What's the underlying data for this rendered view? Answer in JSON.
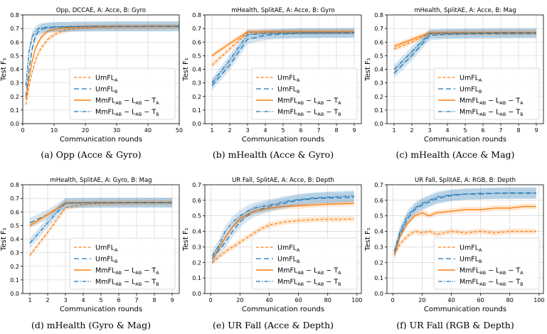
{
  "colors": {
    "umfl_a": "#ff7f0e",
    "umfl_b": "#1f77b4",
    "axis": "#000000",
    "grid": "#cccccc"
  },
  "legend_items": [
    {
      "base": "UmFL",
      "sub": "A",
      "style": "dashed",
      "color": "#ff7f0e"
    },
    {
      "base": "UmFL",
      "sub": "B",
      "style": "dashed-loose",
      "color": "#1f77b4"
    },
    {
      "base": "MmFL",
      "sub": "AB",
      "mid1": " − L",
      "sub2": "AB",
      "mid2": " − T",
      "sub3": "A",
      "style": "solid",
      "color": "#ff7f0e"
    },
    {
      "base": "MmFL",
      "sub": "AB",
      "mid1": " − L",
      "sub2": "AB",
      "mid2": " − T",
      "sub3": "B",
      "style": "dashdot",
      "color": "#1f77b4"
    }
  ],
  "captions": [
    "(a) Opp (Acce & Gyro)",
    "(b) mHealth (Acce & Gyro)",
    "(c) mHealth (Acce & Mag)",
    "(d) mHealth (Gyro & Mag)",
    "(e) UR Fall (Acce & Depth)",
    "(f) UR Fall (RGB & Depth)"
  ],
  "chart_data": [
    {
      "type": "line",
      "title": "Opp, DCCAE, A: Acce, B: Gyro",
      "xlabel": "Communication rounds",
      "ylabel": "Test F₁",
      "xlim": [
        0,
        50
      ],
      "ylim": [
        0.0,
        0.8
      ],
      "xticks": [
        0,
        10,
        20,
        30,
        40,
        50
      ],
      "yticks": [
        0.0,
        0.1,
        0.2,
        0.3,
        0.4,
        0.5,
        0.6,
        0.7,
        0.8
      ],
      "legend_position": "lower right",
      "series": [
        {
          "name": "UmFL_A",
          "x": [
            1,
            2,
            3,
            4,
            5,
            6,
            7,
            8,
            10,
            12,
            15,
            20,
            25,
            30,
            35,
            40,
            45,
            50
          ],
          "y": [
            0.14,
            0.27,
            0.38,
            0.46,
            0.52,
            0.56,
            0.59,
            0.62,
            0.655,
            0.675,
            0.695,
            0.705,
            0.71,
            0.712,
            0.713,
            0.714,
            0.715,
            0.715
          ]
        },
        {
          "name": "UmFL_B",
          "x": [
            1,
            2,
            3,
            4,
            5,
            6,
            8,
            10,
            15,
            20,
            30,
            40,
            50
          ],
          "y": [
            0.2,
            0.4,
            0.55,
            0.64,
            0.68,
            0.695,
            0.705,
            0.71,
            0.712,
            0.714,
            0.715,
            0.716,
            0.716
          ]
        },
        {
          "name": "MmFL_AB-L_AB-T_A",
          "x": [
            1,
            2,
            3,
            4,
            5,
            6,
            7,
            8,
            10,
            15,
            20,
            30,
            40,
            50
          ],
          "y": [
            0.18,
            0.33,
            0.46,
            0.55,
            0.6,
            0.64,
            0.66,
            0.68,
            0.695,
            0.708,
            0.712,
            0.714,
            0.715,
            0.716
          ]
        },
        {
          "name": "MmFL_AB-L_AB-T_B",
          "x": [
            1,
            2,
            3,
            4,
            5,
            6,
            8,
            10,
            15,
            20,
            30,
            40,
            50
          ],
          "y": [
            0.28,
            0.53,
            0.64,
            0.68,
            0.7,
            0.705,
            0.71,
            0.712,
            0.714,
            0.715,
            0.716,
            0.716,
            0.717
          ]
        }
      ]
    },
    {
      "type": "line",
      "title": "mHealth, SplitAE, A: Acce, B: Gyro",
      "xlabel": "Communication rounds",
      "ylabel": "Test F₁",
      "xlim": [
        0.6,
        9.4
      ],
      "ylim": [
        0.0,
        0.8
      ],
      "xticks": [
        1,
        2,
        3,
        4,
        5,
        6,
        7,
        8,
        9
      ],
      "yticks": [
        0.0,
        0.1,
        0.2,
        0.3,
        0.4,
        0.5,
        0.6,
        0.7,
        0.8
      ],
      "legend_position": "lower right",
      "series": [
        {
          "name": "UmFL_A",
          "x": [
            1,
            2,
            3,
            4,
            5,
            6,
            7,
            8,
            9
          ],
          "y": [
            0.43,
            0.55,
            0.67,
            0.672,
            0.672,
            0.673,
            0.673,
            0.673,
            0.673
          ]
        },
        {
          "name": "UmFL_B",
          "x": [
            1,
            2,
            3,
            4,
            5,
            6,
            7,
            8,
            9
          ],
          "y": [
            0.28,
            0.43,
            0.62,
            0.65,
            0.66,
            0.665,
            0.665,
            0.666,
            0.666
          ]
        },
        {
          "name": "MmFL_AB-L_AB-T_A",
          "x": [
            1,
            2,
            3,
            4,
            5,
            6,
            7,
            8,
            9
          ],
          "y": [
            0.5,
            0.59,
            0.675,
            0.676,
            0.676,
            0.677,
            0.677,
            0.677,
            0.677
          ]
        },
        {
          "name": "MmFL_AB-L_AB-T_B",
          "x": [
            1,
            2,
            3,
            4,
            5,
            6,
            7,
            8,
            9
          ],
          "y": [
            0.3,
            0.47,
            0.655,
            0.662,
            0.665,
            0.667,
            0.668,
            0.668,
            0.669
          ]
        }
      ]
    },
    {
      "type": "line",
      "title": "mHealth, SplitAE, A: Acce, B: Mag",
      "xlabel": "Communication rounds",
      "ylabel": "Test F₁",
      "xlim": [
        0.6,
        9.4
      ],
      "ylim": [
        0.0,
        0.8
      ],
      "xticks": [
        1,
        2,
        3,
        4,
        5,
        6,
        7,
        8,
        9
      ],
      "yticks": [
        0.0,
        0.1,
        0.2,
        0.3,
        0.4,
        0.5,
        0.6,
        0.7,
        0.8
      ],
      "legend_position": "lower right",
      "series": [
        {
          "name": "UmFL_A",
          "x": [
            1,
            2,
            3,
            4,
            5,
            6,
            7,
            8,
            9
          ],
          "y": [
            0.55,
            0.6,
            0.665,
            0.667,
            0.668,
            0.668,
            0.668,
            0.668,
            0.668
          ]
        },
        {
          "name": "UmFL_B",
          "x": [
            1,
            2,
            3,
            4,
            5,
            6,
            7,
            8,
            9
          ],
          "y": [
            0.37,
            0.5,
            0.65,
            0.658,
            0.66,
            0.662,
            0.663,
            0.664,
            0.664
          ]
        },
        {
          "name": "MmFL_AB-L_AB-T_A",
          "x": [
            1,
            2,
            3,
            4,
            5,
            6,
            7,
            8,
            9
          ],
          "y": [
            0.57,
            0.62,
            0.668,
            0.669,
            0.669,
            0.67,
            0.67,
            0.67,
            0.67
          ]
        },
        {
          "name": "MmFL_AB-L_AB-T_B",
          "x": [
            1,
            2,
            3,
            4,
            5,
            6,
            7,
            8,
            9
          ],
          "y": [
            0.4,
            0.53,
            0.662,
            0.664,
            0.665,
            0.666,
            0.667,
            0.667,
            0.667
          ]
        }
      ]
    },
    {
      "type": "line",
      "title": "mHealth, SplitAE, A: Gyro, B: Mag",
      "xlabel": "Communication rounds",
      "ylabel": "Test F₁",
      "xlim": [
        0.6,
        9.4
      ],
      "ylim": [
        0.0,
        0.8
      ],
      "xticks": [
        1,
        2,
        3,
        4,
        5,
        6,
        7,
        8,
        9
      ],
      "yticks": [
        0.0,
        0.1,
        0.2,
        0.3,
        0.4,
        0.5,
        0.6,
        0.7,
        0.8
      ],
      "legend_position": "lower right",
      "series": [
        {
          "name": "UmFL_A",
          "x": [
            1,
            2,
            3,
            4,
            5,
            6,
            7,
            8,
            9
          ],
          "y": [
            0.28,
            0.45,
            0.63,
            0.655,
            0.663,
            0.666,
            0.667,
            0.668,
            0.668
          ]
        },
        {
          "name": "UmFL_B",
          "x": [
            1,
            2,
            3,
            4,
            5,
            6,
            7,
            8,
            9
          ],
          "y": [
            0.52,
            0.58,
            0.665,
            0.667,
            0.668,
            0.668,
            0.668,
            0.668,
            0.668
          ]
        },
        {
          "name": "MmFL_AB-L_AB-T_A",
          "x": [
            1,
            2,
            3,
            4,
            5,
            6,
            7,
            8,
            9
          ],
          "y": [
            0.5,
            0.58,
            0.668,
            0.669,
            0.669,
            0.669,
            0.67,
            0.67,
            0.67
          ]
        },
        {
          "name": "MmFL_AB-L_AB-T_B",
          "x": [
            1,
            2,
            3,
            4,
            5,
            6,
            7,
            8,
            9
          ],
          "y": [
            0.37,
            0.52,
            0.665,
            0.667,
            0.668,
            0.668,
            0.669,
            0.669,
            0.669
          ]
        }
      ]
    },
    {
      "type": "line",
      "title": "UR Fall, SplitAE, A: Acce, B: Depth",
      "xlabel": "Communication rounds",
      "ylabel": "Test F₁",
      "xlim": [
        -4,
        103
      ],
      "ylim": [
        0.0,
        0.7
      ],
      "xticks": [
        0,
        20,
        40,
        60,
        80,
        100
      ],
      "yticks": [
        0.0,
        0.1,
        0.2,
        0.3,
        0.4,
        0.5,
        0.6,
        0.7
      ],
      "legend_position": "lower right",
      "series": [
        {
          "name": "UmFL_A",
          "x": [
            1,
            5,
            10,
            15,
            20,
            25,
            30,
            35,
            40,
            50,
            60,
            70,
            80,
            90,
            98
          ],
          "y": [
            0.2,
            0.23,
            0.27,
            0.3,
            0.33,
            0.36,
            0.39,
            0.42,
            0.44,
            0.46,
            0.47,
            0.475,
            0.478,
            0.478,
            0.48
          ]
        },
        {
          "name": "UmFL_B",
          "x": [
            1,
            5,
            10,
            15,
            20,
            25,
            30,
            40,
            50,
            60,
            70,
            80,
            90,
            98
          ],
          "y": [
            0.22,
            0.27,
            0.33,
            0.4,
            0.46,
            0.5,
            0.53,
            0.56,
            0.58,
            0.6,
            0.61,
            0.615,
            0.615,
            0.62
          ]
        },
        {
          "name": "MmFL_AB-L_AB-T_A",
          "x": [
            1,
            5,
            10,
            15,
            20,
            25,
            30,
            40,
            50,
            60,
            70,
            80,
            90,
            98
          ],
          "y": [
            0.22,
            0.28,
            0.36,
            0.43,
            0.48,
            0.51,
            0.53,
            0.55,
            0.56,
            0.565,
            0.57,
            0.575,
            0.578,
            0.58
          ]
        },
        {
          "name": "MmFL_AB-L_AB-T_B",
          "x": [
            1,
            5,
            10,
            15,
            20,
            25,
            30,
            40,
            50,
            60,
            70,
            80,
            90,
            98
          ],
          "y": [
            0.24,
            0.3,
            0.4,
            0.46,
            0.5,
            0.53,
            0.55,
            0.57,
            0.59,
            0.605,
            0.615,
            0.62,
            0.625,
            0.628
          ]
        }
      ]
    },
    {
      "type": "line",
      "title": "UR Fall, SplitAE, A: RGB, B: Depth",
      "xlabel": "Communication rounds",
      "ylabel": "Test F₁",
      "xlim": [
        -4,
        103
      ],
      "ylim": [
        0.0,
        0.7
      ],
      "xticks": [
        0,
        20,
        40,
        60,
        80,
        100
      ],
      "yticks": [
        0.0,
        0.1,
        0.2,
        0.3,
        0.4,
        0.5,
        0.6,
        0.7
      ],
      "legend_position": "lower right",
      "series": [
        {
          "name": "UmFL_A",
          "x": [
            1,
            5,
            10,
            15,
            20,
            25,
            30,
            40,
            50,
            60,
            70,
            80,
            90,
            98
          ],
          "y": [
            0.25,
            0.32,
            0.37,
            0.4,
            0.39,
            0.4,
            0.38,
            0.4,
            0.39,
            0.4,
            0.39,
            0.4,
            0.4,
            0.4
          ]
        },
        {
          "name": "UmFL_B",
          "x": [
            1,
            5,
            10,
            15,
            20,
            25,
            30,
            40,
            50,
            60,
            70,
            80,
            90,
            98
          ],
          "y": [
            0.25,
            0.38,
            0.48,
            0.54,
            0.57,
            0.59,
            0.61,
            0.63,
            0.64,
            0.64,
            0.645,
            0.645,
            0.645,
            0.645
          ]
        },
        {
          "name": "MmFL_AB-L_AB-T_A",
          "x": [
            1,
            5,
            10,
            15,
            20,
            25,
            30,
            40,
            50,
            60,
            70,
            80,
            90,
            98
          ],
          "y": [
            0.25,
            0.37,
            0.45,
            0.5,
            0.52,
            0.5,
            0.52,
            0.53,
            0.54,
            0.54,
            0.55,
            0.55,
            0.56,
            0.56
          ]
        },
        {
          "name": "MmFL_AB-L_AB-T_B",
          "x": [
            1,
            5,
            10,
            15,
            20,
            25,
            30,
            40,
            50,
            60,
            70,
            80,
            90,
            98
          ],
          "y": [
            0.27,
            0.4,
            0.5,
            0.55,
            0.58,
            0.6,
            0.62,
            0.635,
            0.64,
            0.645,
            0.645,
            0.648,
            0.648,
            0.648
          ]
        }
      ]
    }
  ]
}
